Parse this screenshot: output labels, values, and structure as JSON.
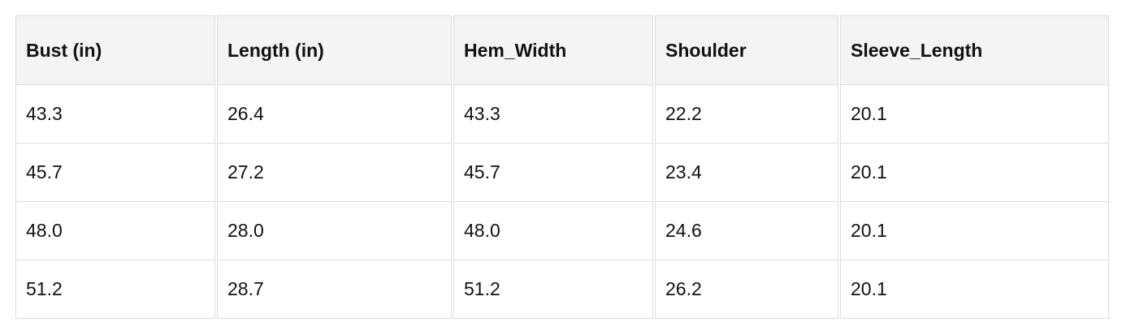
{
  "table": {
    "headers": [
      "Bust (in)",
      "Length (in)",
      "Hem_Width",
      "Shoulder",
      "Sleeve_Length"
    ],
    "rows": [
      [
        "43.3",
        "26.4",
        "43.3",
        "22.2",
        "20.1"
      ],
      [
        "45.7",
        "27.2",
        "45.7",
        "23.4",
        "20.1"
      ],
      [
        "48.0",
        "28.0",
        "48.0",
        "24.6",
        "20.1"
      ],
      [
        "51.2",
        "28.7",
        "51.2",
        "26.2",
        "20.1"
      ]
    ]
  }
}
